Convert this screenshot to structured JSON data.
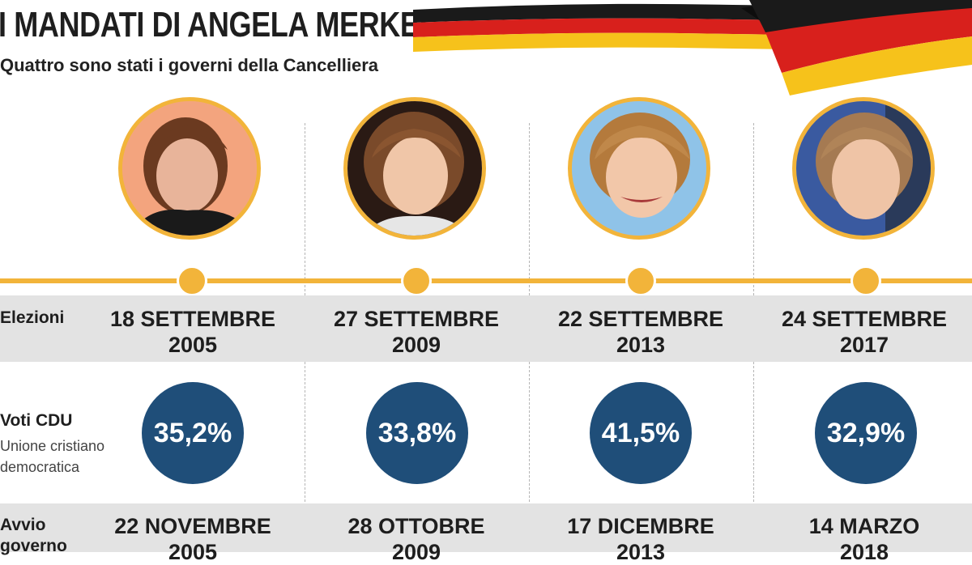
{
  "header": {
    "title": "I MANDATI DI ANGELA MERKEL",
    "subtitle": "Quattro sono stati i governi della Cancelliera"
  },
  "colors": {
    "accent": "#f2b43a",
    "vote_circle": "#1f4e79",
    "band": "#e3e3e3",
    "flag_black": "#1a1a1a",
    "flag_red": "#d8201c",
    "flag_gold": "#f6c21b"
  },
  "labels": {
    "elezioni": "Elezioni",
    "voti": "Voti CDU",
    "voti_sub": "Unione cristiano democratica",
    "avvio": "Avvio governo"
  },
  "terms": [
    {
      "election_line1": "18 SETTEMBRE",
      "election_line2": "2005",
      "vote": "35,2%",
      "start_line1": "22 NOVEMBRE",
      "start_line2": "2005"
    },
    {
      "election_line1": "27 SETTEMBRE",
      "election_line2": "2009",
      "vote": "33,8%",
      "start_line1": "28 OTTOBRE",
      "start_line2": "2009"
    },
    {
      "election_line1": "22 SETTEMBRE",
      "election_line2": "2013",
      "vote": "41,5%",
      "start_line1": "17 DICEMBRE",
      "start_line2": "2013"
    },
    {
      "election_line1": "24 SETTEMBRE",
      "election_line2": "2017",
      "vote": "32,9%",
      "start_line1": "14 MARZO",
      "start_line2": "2018"
    }
  ]
}
